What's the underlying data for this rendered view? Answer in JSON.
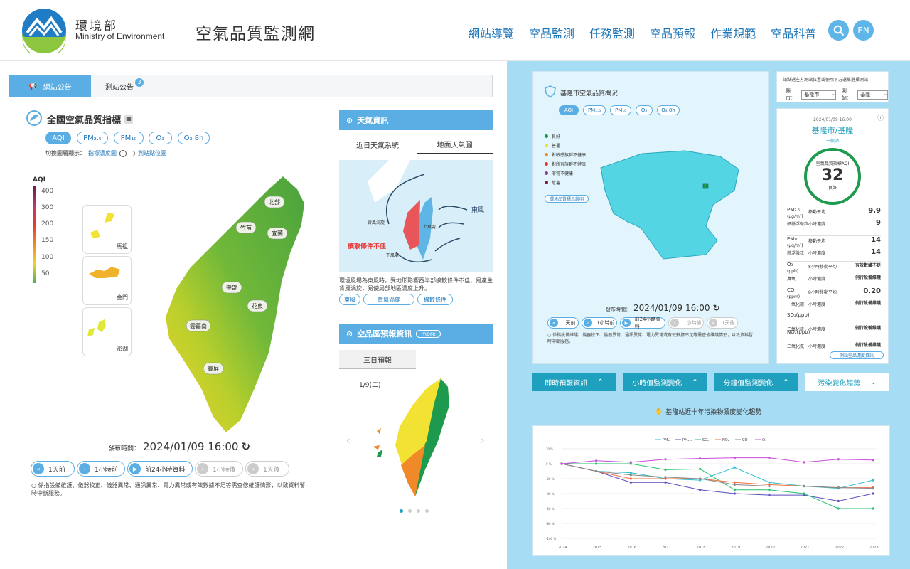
{
  "header": {
    "org_zh": "環境部",
    "org_en": "Ministry of Environment",
    "site_title": "空氣品質監測網",
    "nav": [
      "網站導覽",
      "空品監測",
      "任務監測",
      "空品預報",
      "作業規範",
      "空品科普"
    ],
    "lang": "EN"
  },
  "tabs": {
    "announce": "網站公告",
    "station": "測站公告",
    "station_badge": "3"
  },
  "aqi": {
    "title": "全國空氣品質指標",
    "pills": [
      "AQI",
      "PM₂.₅",
      "PM₁₀",
      "O₃",
      "O₃ 8h"
    ],
    "toggle_label": "切換圖層顯示：",
    "toggle_left": "指標濃度圖",
    "toggle_right": "測站點位圖",
    "legend_title": "AQI",
    "legend_ticks": [
      "400",
      "300",
      "200",
      "150",
      "100",
      "50"
    ],
    "islands": [
      "馬祖",
      "金門",
      "澎湖"
    ],
    "regions": [
      "北部",
      "竹苗",
      "宜蘭",
      "中部",
      "花東",
      "雲嘉南",
      "高屏"
    ],
    "publish_label": "發布時間：",
    "publish_time": "2024/01/09 16:00",
    "controls": [
      "1天前",
      "1小時前",
      "前24小時資料",
      "1小時後",
      "1天後"
    ],
    "note": "係指設備維護、儀器校正、儀器異常、通訊異常、電力異常或有效數據不足等需查修維護情形，以致資料暫時中斷服務。"
  },
  "weather": {
    "title": "天氣資訊",
    "tabs": [
      "近日天氣系統",
      "地面天氣圖"
    ],
    "map_labels": [
      "東風",
      "背風渦旋",
      "上風處",
      "下風處",
      "擴散條件不佳"
    ],
    "desc": "環境風場為東風時，受地形影響西半部擴散條件不佳，易產生背風渦旋，易使局部地區濃度上升。",
    "tags": [
      "東風",
      "背風渦旋",
      "擴散條件"
    ]
  },
  "forecast": {
    "title": "空品區預報資訊",
    "more": "more",
    "tab": "三日預報",
    "date": "1/9(二)",
    "dots": 4
  },
  "keelung": {
    "title": "基隆市空氣品質概況",
    "pills": [
      "AQI",
      "PM₂.₅",
      "PM₁₀",
      "O₃",
      "O₃ 8h"
    ],
    "legend": [
      "良好",
      "普通",
      "對敏感族群不健康",
      "對所有族群不健康",
      "非常不健康",
      "危害"
    ],
    "legend_colors": [
      "#1d9a4d",
      "#f2e234",
      "#f08a28",
      "#e8342f",
      "#8a3f9b",
      "#7e1e36"
    ],
    "legend_link": "環境品質標示說明",
    "publish_label": "發布時間：",
    "publish_time": "2024/01/09 16:00",
    "controls": [
      "1天前",
      "1小時前",
      "前24小時資料",
      "1小時後",
      "1天後"
    ],
    "note": "係指設備維護、儀器校正、儀器異常、通訊異常、電力異常或有效數據不足等需查修維護情形，以致資料暫時中斷服務。"
  },
  "station": {
    "hint": "請點選左方測站位置或使用下方選單選擇測站",
    "county_label": "縣市：",
    "county": "基隆市",
    "site_label": "測站：",
    "site": "基隆",
    "time": "2024/01/09 16:00",
    "name": "基隆市/基隆",
    "type": "一般站",
    "aqi_label": "空氣品質指標AQI",
    "aqi": "32",
    "status": "良好",
    "rows": [
      {
        "p": "PM₂.₅",
        "u": "(μg/m³)",
        "z": "細懸浮微粒",
        "a": "移動平均",
        "av": "9.9",
        "b": "小時濃度",
        "bv": "9"
      },
      {
        "p": "PM₁₀",
        "u": "(μg/m³)",
        "z": "懸浮微粒",
        "a": "移動平均",
        "av": "14",
        "b": "小時濃度",
        "bv": "14"
      },
      {
        "p": "O₃",
        "u": "(ppb)",
        "z": "臭氧",
        "a": "8小時移動平均",
        "av": "有效數據不足",
        "b": "小時濃度",
        "bv": "例行設備維護"
      },
      {
        "p": "CO",
        "u": "(ppm)",
        "z": "一氧化碳",
        "a": "8小時移動平均",
        "av": "0.20",
        "b": "小時濃度",
        "bv": "例行設備維護"
      },
      {
        "p": "SO₂(ppb)",
        "u": "",
        "z": "二氧化硫",
        "a": "",
        "av": "",
        "b": "小時濃度",
        "bv": "例行設備維護"
      },
      {
        "p": "NO₂(ppb)",
        "u": "",
        "z": "二氧化氮",
        "a": "",
        "av": "",
        "b": "小時濃度",
        "bv": "例行設備維護"
      }
    ],
    "link": "測站空品濃度資訊"
  },
  "buttons": [
    "即時預報資訊",
    "小時值監測變化",
    "分鐘值監測變化",
    "污染變化趨勢"
  ],
  "trend": {
    "title": "基隆站近十年污染物濃度變化趨勢"
  },
  "chart_data": {
    "type": "line",
    "title": "",
    "x": [
      "2014",
      "2015",
      "2016",
      "2017",
      "2018",
      "2019",
      "2020",
      "2021",
      "2022",
      "2023"
    ],
    "ylim": [
      -100,
      20
    ],
    "yticks": [
      "20 %",
      "0 %",
      "-20 %",
      "-40 %",
      "-60 %",
      "-80 %",
      "-100 %"
    ],
    "series": [
      {
        "name": "PM₁₀",
        "color": "#2fc0d0",
        "values": [
          0,
          -10,
          -12,
          -20,
          -22,
          -5,
          -25,
          -30,
          -33,
          -22
        ]
      },
      {
        "name": "PM₂.₅",
        "color": "#5a4fc0",
        "values": [
          0,
          -10,
          -25,
          -25,
          -35,
          -40,
          -42,
          -42,
          -50,
          -40
        ]
      },
      {
        "name": "SO₂",
        "color": "#22c46a",
        "values": [
          0,
          0,
          0,
          -8,
          -7,
          -35,
          -35,
          -40,
          -60,
          -60
        ]
      },
      {
        "name": "NO₂",
        "color": "#f07040",
        "values": [
          0,
          -10,
          -20,
          -20,
          -20,
          -25,
          -28,
          -30,
          -32,
          -32
        ]
      },
      {
        "name": "CO",
        "color": "#888888",
        "values": [
          0,
          -10,
          -15,
          -18,
          -20,
          -28,
          -30,
          -30,
          -32,
          -33
        ]
      },
      {
        "name": "O₃",
        "color": "#c84fd8",
        "values": [
          0,
          4,
          2,
          6,
          7,
          8,
          8,
          2,
          6,
          5
        ]
      }
    ]
  }
}
